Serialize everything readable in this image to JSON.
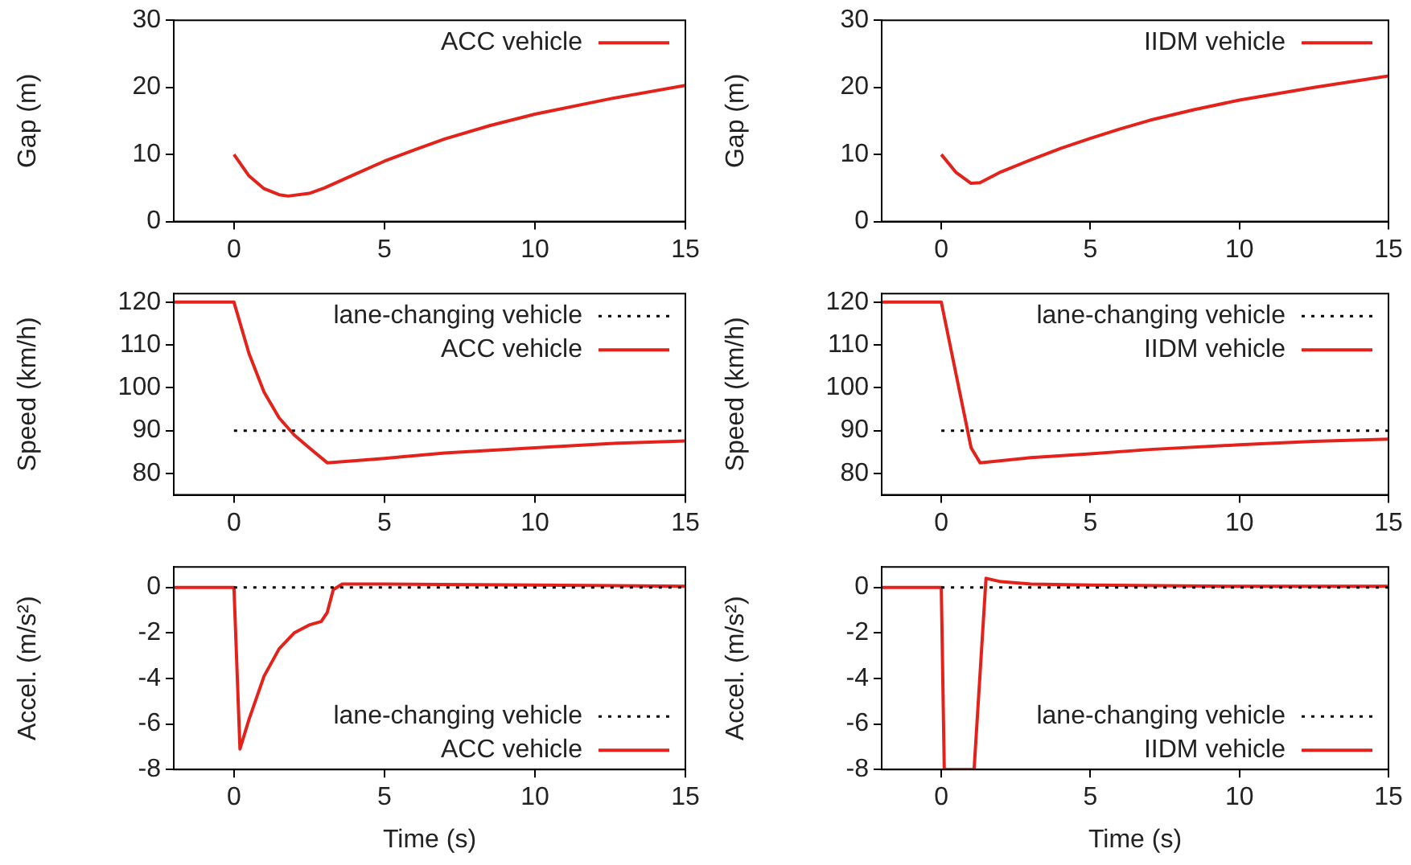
{
  "chart_data": [
    {
      "type": "line",
      "ylabel": "Gap (m)",
      "xlim": [
        -2,
        15
      ],
      "xticks": [
        0,
        5,
        10,
        15
      ],
      "ylim": [
        0,
        30
      ],
      "yticks": [
        0,
        10,
        20,
        30
      ],
      "grid": false,
      "legend": "top right",
      "series": [
        {
          "name": "ACC vehicle",
          "color": "#e3231b",
          "line_style": "solid",
          "x": [
            0,
            0.5,
            1,
            1.5,
            1.8,
            2.5,
            3,
            4,
            5,
            6,
            7,
            8.5,
            10,
            12.5,
            15
          ],
          "values": [
            10,
            6.8,
            4.9,
            4,
            3.8,
            4.2,
            5,
            7,
            9,
            10.7,
            12.3,
            14.3,
            16,
            18.3,
            20.3
          ]
        }
      ]
    },
    {
      "type": "line",
      "ylabel": "Gap (m)",
      "xlim": [
        -2,
        15
      ],
      "xticks": [
        0,
        5,
        10,
        15
      ],
      "ylim": [
        0,
        30
      ],
      "yticks": [
        0,
        10,
        20,
        30
      ],
      "grid": false,
      "legend": "top right",
      "series": [
        {
          "name": "IIDM vehicle",
          "color": "#e3231b",
          "line_style": "solid",
          "x": [
            0,
            0.5,
            1,
            1.3,
            2,
            3,
            4,
            5,
            6,
            7,
            8.5,
            10,
            12.5,
            15
          ],
          "values": [
            10,
            7.3,
            5.7,
            5.8,
            7.4,
            9.2,
            10.9,
            12.4,
            13.8,
            15.1,
            16.7,
            18.1,
            20,
            21.7
          ]
        }
      ]
    },
    {
      "type": "line",
      "ylabel": "Speed (km/h)",
      "xlim": [
        -2,
        15
      ],
      "xticks": [
        0,
        5,
        10,
        15
      ],
      "ylim": [
        75,
        122
      ],
      "yticks": [
        80,
        90,
        100,
        110,
        120
      ],
      "grid": false,
      "legend": "top right",
      "series": [
        {
          "name": "lane-changing vehicle",
          "color": "#000000",
          "line_style": "dotted",
          "x": [
            0,
            15
          ],
          "values": [
            90,
            90
          ]
        },
        {
          "name": "ACC vehicle",
          "color": "#e3231b",
          "line_style": "solid",
          "x": [
            -2,
            0,
            0.5,
            1,
            1.5,
            2,
            2.5,
            3.1,
            5,
            7,
            10,
            12.5,
            15
          ],
          "values": [
            120,
            120,
            108,
            99,
            93,
            89,
            86,
            82.5,
            83.5,
            84.8,
            86,
            87,
            87.6
          ]
        }
      ]
    },
    {
      "type": "line",
      "ylabel": "Speed (km/h)",
      "xlim": [
        -2,
        15
      ],
      "xticks": [
        0,
        5,
        10,
        15
      ],
      "ylim": [
        75,
        122
      ],
      "yticks": [
        80,
        90,
        100,
        110,
        120
      ],
      "grid": false,
      "legend": "top right",
      "series": [
        {
          "name": "lane-changing vehicle",
          "color": "#000000",
          "line_style": "dotted",
          "x": [
            0,
            15
          ],
          "values": [
            90,
            90
          ]
        },
        {
          "name": "IIDM vehicle",
          "color": "#e3231b",
          "line_style": "solid",
          "x": [
            -2,
            0,
            1,
            1.3,
            3,
            5,
            7,
            10,
            12.5,
            15
          ],
          "values": [
            120,
            120,
            86,
            82.5,
            83.7,
            84.6,
            85.6,
            86.7,
            87.5,
            88
          ]
        }
      ]
    },
    {
      "type": "line",
      "ylabel": "Accel. (m/s²)",
      "xlabel": "Time (s)",
      "xlim": [
        -2,
        15
      ],
      "xticks": [
        0,
        5,
        10,
        15
      ],
      "ylim": [
        -8,
        0.9
      ],
      "yticks": [
        -8,
        -6,
        -4,
        -2,
        0
      ],
      "grid": false,
      "legend": "bottom right",
      "series": [
        {
          "name": "lane-changing vehicle",
          "color": "#000000",
          "line_style": "dotted",
          "x": [
            0,
            15
          ],
          "values": [
            0,
            0
          ]
        },
        {
          "name": "ACC vehicle",
          "color": "#e3231b",
          "line_style": "solid",
          "x": [
            -2,
            0,
            0.2,
            0.5,
            1,
            1.5,
            2,
            2.5,
            2.9,
            3.1,
            3.3,
            3.6,
            5,
            10,
            15
          ],
          "values": [
            0,
            0,
            -7.1,
            -5.8,
            -3.9,
            -2.7,
            -2,
            -1.65,
            -1.5,
            -1.1,
            -0.1,
            0.15,
            0.15,
            0.1,
            0.05
          ]
        }
      ]
    },
    {
      "type": "line",
      "ylabel": "Accel. (m/s²)",
      "xlabel": "Time (s)",
      "xlim": [
        -2,
        15
      ],
      "xticks": [
        0,
        5,
        10,
        15
      ],
      "ylim": [
        -8,
        0.9
      ],
      "yticks": [
        -8,
        -6,
        -4,
        -2,
        0
      ],
      "grid": false,
      "legend": "bottom right",
      "series": [
        {
          "name": "lane-changing vehicle",
          "color": "#000000",
          "line_style": "dotted",
          "x": [
            0,
            15
          ],
          "values": [
            0,
            0
          ]
        },
        {
          "name": "IIDM vehicle",
          "color": "#e3231b",
          "line_style": "solid",
          "x": [
            -2,
            0,
            0.1,
            1.1,
            1.5,
            2,
            3,
            5,
            10,
            15
          ],
          "values": [
            0,
            0,
            -8,
            -8,
            0.4,
            0.25,
            0.15,
            0.1,
            0.05,
            0.05
          ]
        }
      ]
    }
  ]
}
